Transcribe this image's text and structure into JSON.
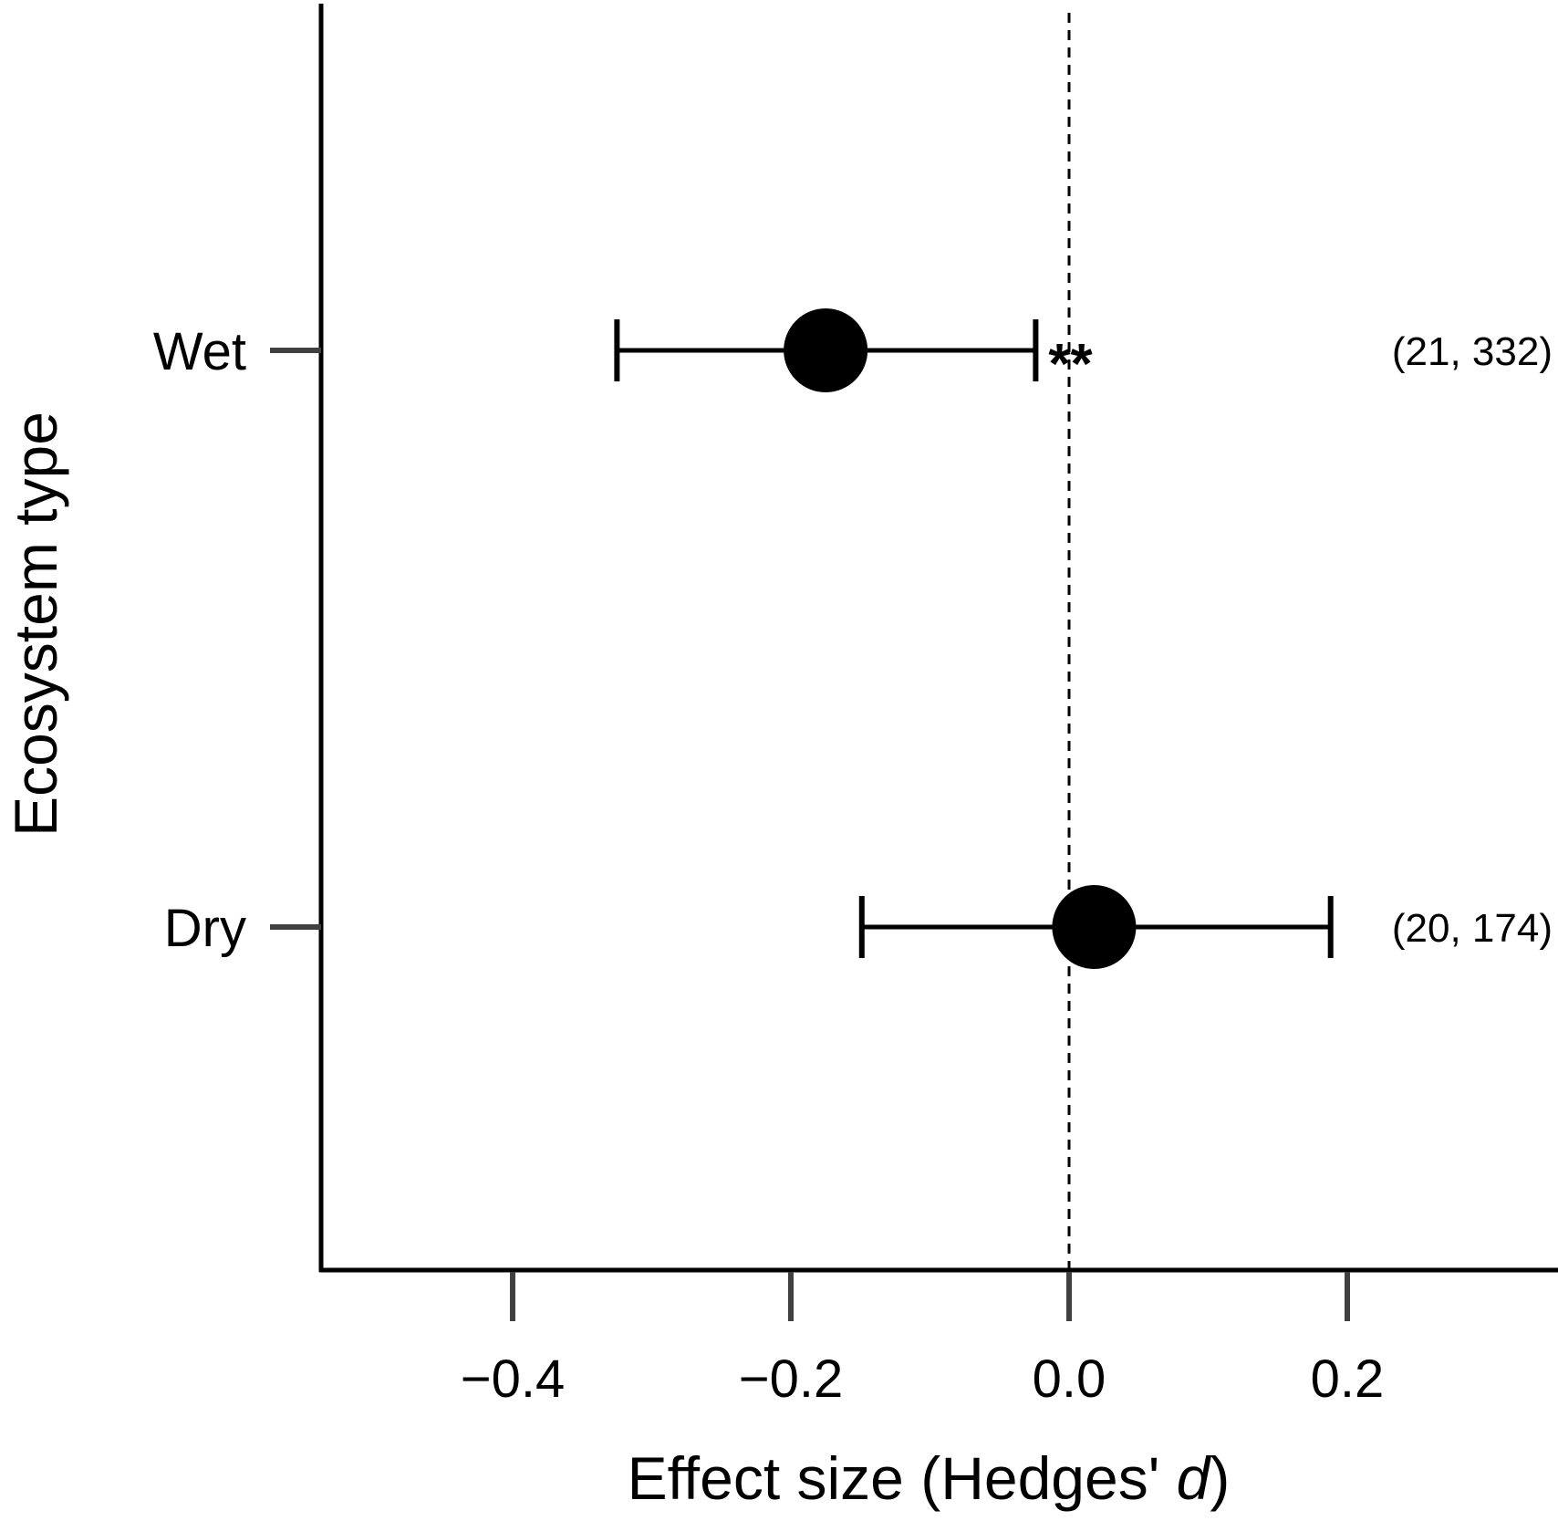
{
  "chart_data": {
    "type": "scatter",
    "subtype": "forest-plot",
    "xlabel": "Effect size (Hedges' d)",
    "xlabel_parts": {
      "prefix": "Effect size (Hedges' ",
      "italic": "d",
      "suffix": ")"
    },
    "ylabel": "Ecosystem type",
    "xlim": [
      -0.545,
      0.345
    ],
    "xticks": [
      -0.4,
      -0.2,
      0.0,
      0.2
    ],
    "xtick_labels": [
      "−0.4",
      "−0.2",
      "0.0",
      "0.2"
    ],
    "reference_line": {
      "x": 0.0,
      "style": "dashed"
    },
    "grid": false,
    "legend": "none",
    "categories": [
      "Wet",
      "Dry"
    ],
    "points": [
      {
        "category": "Wet",
        "estimate": -0.175,
        "ci_low": -0.325,
        "ci_high": -0.024,
        "significance": "**",
        "annotation": "(21, 332)"
      },
      {
        "category": "Dry",
        "estimate": 0.018,
        "ci_low": -0.149,
        "ci_high": 0.188,
        "significance": "",
        "annotation": "(20, 174)"
      }
    ],
    "colors": {
      "points": "#000000",
      "axes": "#000000",
      "ticks": "#404040"
    }
  }
}
